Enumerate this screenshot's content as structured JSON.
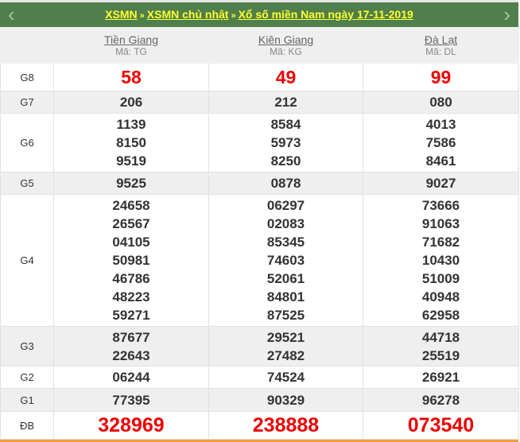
{
  "nav": {
    "breadcrumb": [
      "XSMN",
      "XSMN chủ nhật",
      "Xổ số miền Nam ngày 17-11-2019"
    ],
    "separator": "»",
    "prev_icon": "chevron-left-icon",
    "next_icon": "chevron-right-icon",
    "prev_glyph": "‹",
    "next_glyph": "›"
  },
  "provinces": [
    {
      "name": "Tiền Giang",
      "code": "Mã: TG"
    },
    {
      "name": "Kiên Giang",
      "code": "Mã: KG"
    },
    {
      "name": "Đà Lạt",
      "code": "Mã: DL"
    }
  ],
  "prizes": [
    {
      "label": "G8",
      "highlight": true,
      "values": [
        [
          "58"
        ],
        [
          "49"
        ],
        [
          "99"
        ]
      ]
    },
    {
      "label": "G7",
      "values": [
        [
          "206"
        ],
        [
          "212"
        ],
        [
          "080"
        ]
      ]
    },
    {
      "label": "G6",
      "values": [
        [
          "1139",
          "8150",
          "9519"
        ],
        [
          "8584",
          "5973",
          "8250"
        ],
        [
          "4013",
          "7586",
          "8461"
        ]
      ]
    },
    {
      "label": "G5",
      "values": [
        [
          "9525"
        ],
        [
          "0878"
        ],
        [
          "9027"
        ]
      ]
    },
    {
      "label": "G4",
      "values": [
        [
          "24658",
          "26567",
          "04105",
          "50981",
          "46786",
          "48223",
          "59271"
        ],
        [
          "06297",
          "02083",
          "85345",
          "74603",
          "52061",
          "84801",
          "87525"
        ],
        [
          "73666",
          "91063",
          "71682",
          "10430",
          "51009",
          "40948",
          "62958"
        ]
      ]
    },
    {
      "label": "G3",
      "values": [
        [
          "87677",
          "22643"
        ],
        [
          "29521",
          "27482"
        ],
        [
          "44718",
          "25519"
        ]
      ]
    },
    {
      "label": "G2",
      "values": [
        [
          "06244"
        ],
        [
          "74524"
        ],
        [
          "26921"
        ]
      ]
    },
    {
      "label": "G1",
      "values": [
        [
          "77395"
        ],
        [
          "90329"
        ],
        [
          "96278"
        ]
      ]
    },
    {
      "label": "ĐB",
      "highlight": true,
      "special": true,
      "values": [
        [
          "328969"
        ],
        [
          "238888"
        ],
        [
          "073540"
        ]
      ]
    }
  ],
  "colors": {
    "nav_bg": "#4f7f4a",
    "link": "#ffff33",
    "highlight": "#ee0000",
    "bottom_border": "#f49a3a"
  }
}
